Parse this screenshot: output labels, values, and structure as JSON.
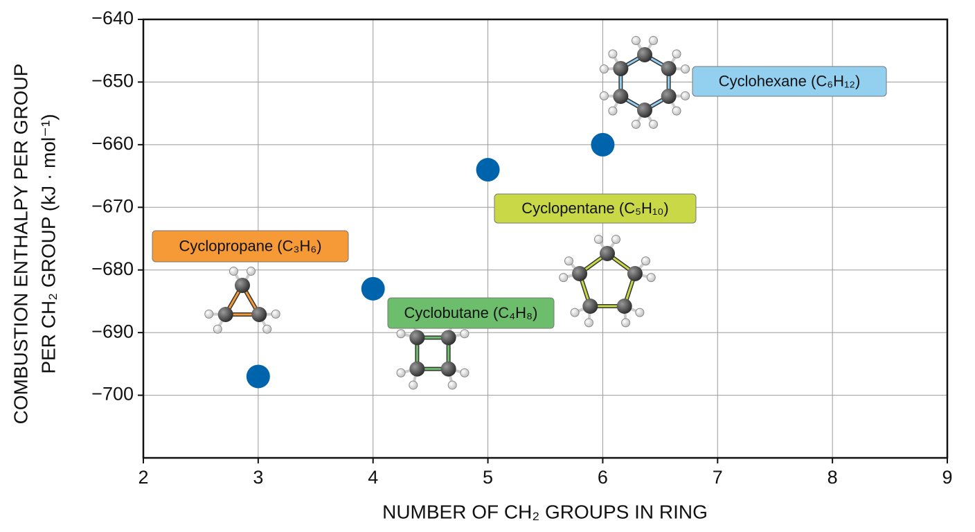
{
  "chart_data": {
    "type": "scatter",
    "xlabel": "NUMBER OF CH₂ GROUPS IN RING",
    "ylabel": [
      "COMBUSTION ENTHALPY PER GROUP",
      "PER CH₂ GROUP (kJ · mol⁻¹)"
    ],
    "x": [
      3,
      4,
      5,
      6
    ],
    "values": [
      -697,
      -683,
      -664,
      -660
    ],
    "color": "#0064ad",
    "xlim": [
      2,
      9
    ],
    "ylim": [
      -710,
      -640
    ],
    "xticks": [
      2,
      3,
      4,
      5,
      6,
      7,
      8,
      9
    ],
    "yticks": [
      {
        "value": -640,
        "label": "−640"
      },
      {
        "value": -650,
        "label": "−650"
      },
      {
        "value": -660,
        "label": "−660"
      },
      {
        "value": -670,
        "label": "−670"
      },
      {
        "value": -680,
        "label": "−680"
      },
      {
        "value": -690,
        "label": "−690"
      },
      {
        "value": -700,
        "label": "−700"
      }
    ],
    "grid": true,
    "annotations": [
      {
        "text": "Cyclopropane (C₃H₆)",
        "color": "#f59a36"
      },
      {
        "text": "Cyclobutane (C₄H₈)",
        "color": "#6cbd6c"
      },
      {
        "text": "Cyclopentane (C₅H₁₀)",
        "color": "#c9d846"
      },
      {
        "text": "Cyclohexane (C₆H₁₂)",
        "color": "#93d0f0"
      }
    ]
  }
}
